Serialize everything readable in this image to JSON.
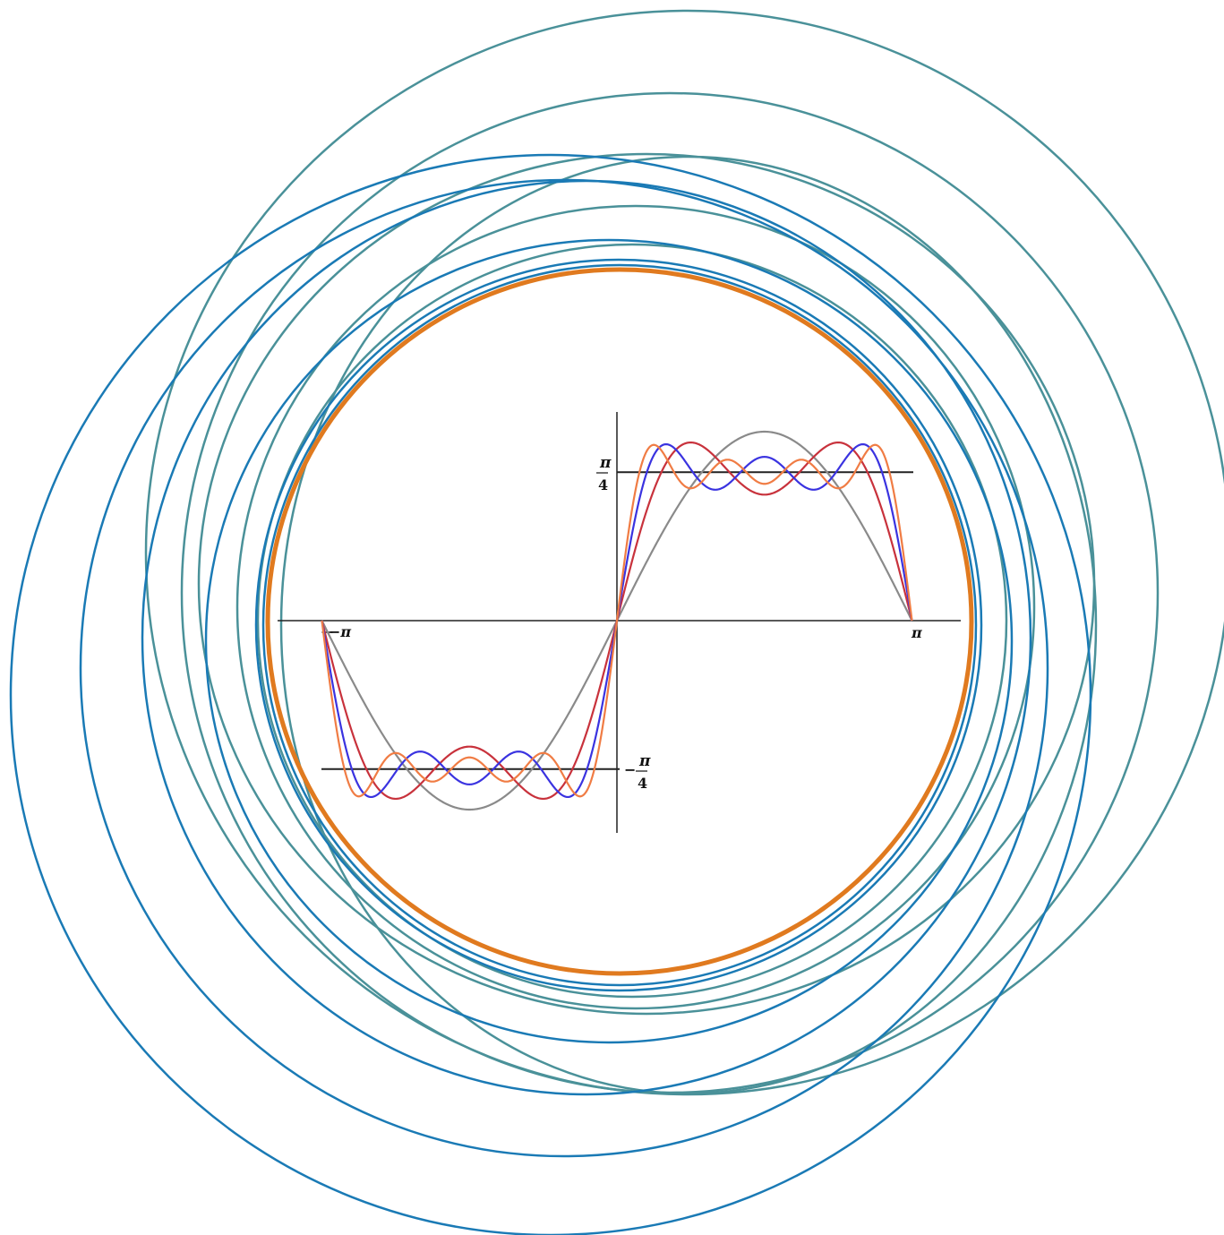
{
  "chart_data": {
    "type": "line",
    "title": "",
    "xlabel": "",
    "ylabel": "",
    "xlim": [
      -3.1416,
      3.1416
    ],
    "ylim": [
      -1.12,
      1.12
    ],
    "grid": false,
    "legend": "none",
    "x_ticks": [
      {
        "value": -3.1416,
        "label": "−π"
      },
      {
        "value": 3.1416,
        "label": "π"
      }
    ],
    "y_ticks": [
      {
        "value": 0.7854,
        "num": "π",
        "den": "4",
        "sign": ""
      },
      {
        "value": -0.7854,
        "num": "π",
        "den": "4",
        "sign": "−"
      }
    ],
    "target_level": 0.7854,
    "series": [
      {
        "color": "#8a8a8a",
        "terms": 1
      },
      {
        "color": "#c8323c",
        "terms": 2
      },
      {
        "color": "#3a33e0",
        "terms": 3
      },
      {
        "color": "#f07c44",
        "terms": 4
      }
    ],
    "background_rings": {
      "orange_color": "#e07a1f",
      "blue_color": "#1a7ab5",
      "teal_color": "#4a9199"
    }
  }
}
